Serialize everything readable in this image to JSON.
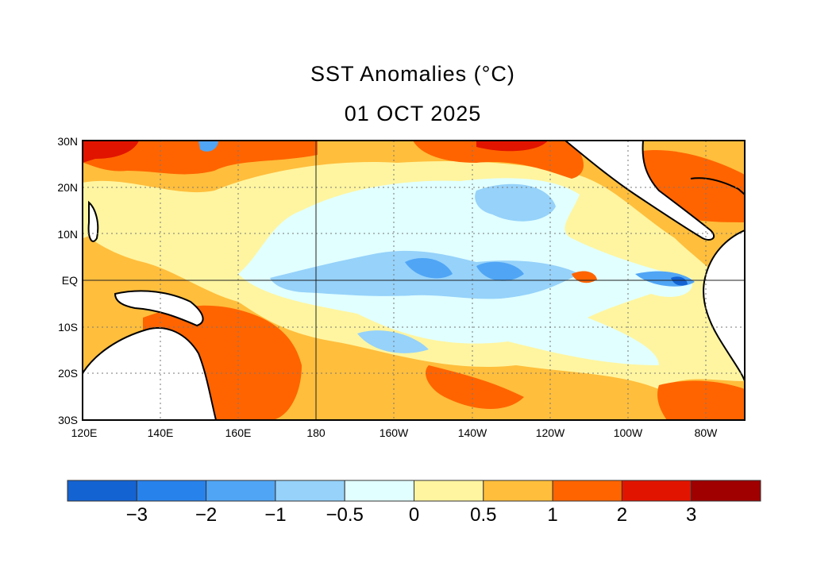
{
  "title": "SST Anomalies (°C)",
  "date": "01 OCT 2025",
  "lat_labels": [
    "30N",
    "20N",
    "10N",
    "EQ",
    "10S",
    "20S",
    "30S"
  ],
  "lon_labels": [
    "120E",
    "140E",
    "160E",
    "180",
    "160W",
    "140W",
    "120W",
    "100W",
    "80W"
  ],
  "colorbar": {
    "colors": [
      "#1463d2",
      "#2882eb",
      "#50a5f5",
      "#96d2fa",
      "#e1ffff",
      "#fff5a0",
      "#ffbe3c",
      "#ff6400",
      "#e11400",
      "#a00000"
    ],
    "labels": [
      "−3",
      "−2",
      "−1",
      "−0.5",
      "0",
      "0.5",
      "1",
      "2",
      "3"
    ]
  }
}
